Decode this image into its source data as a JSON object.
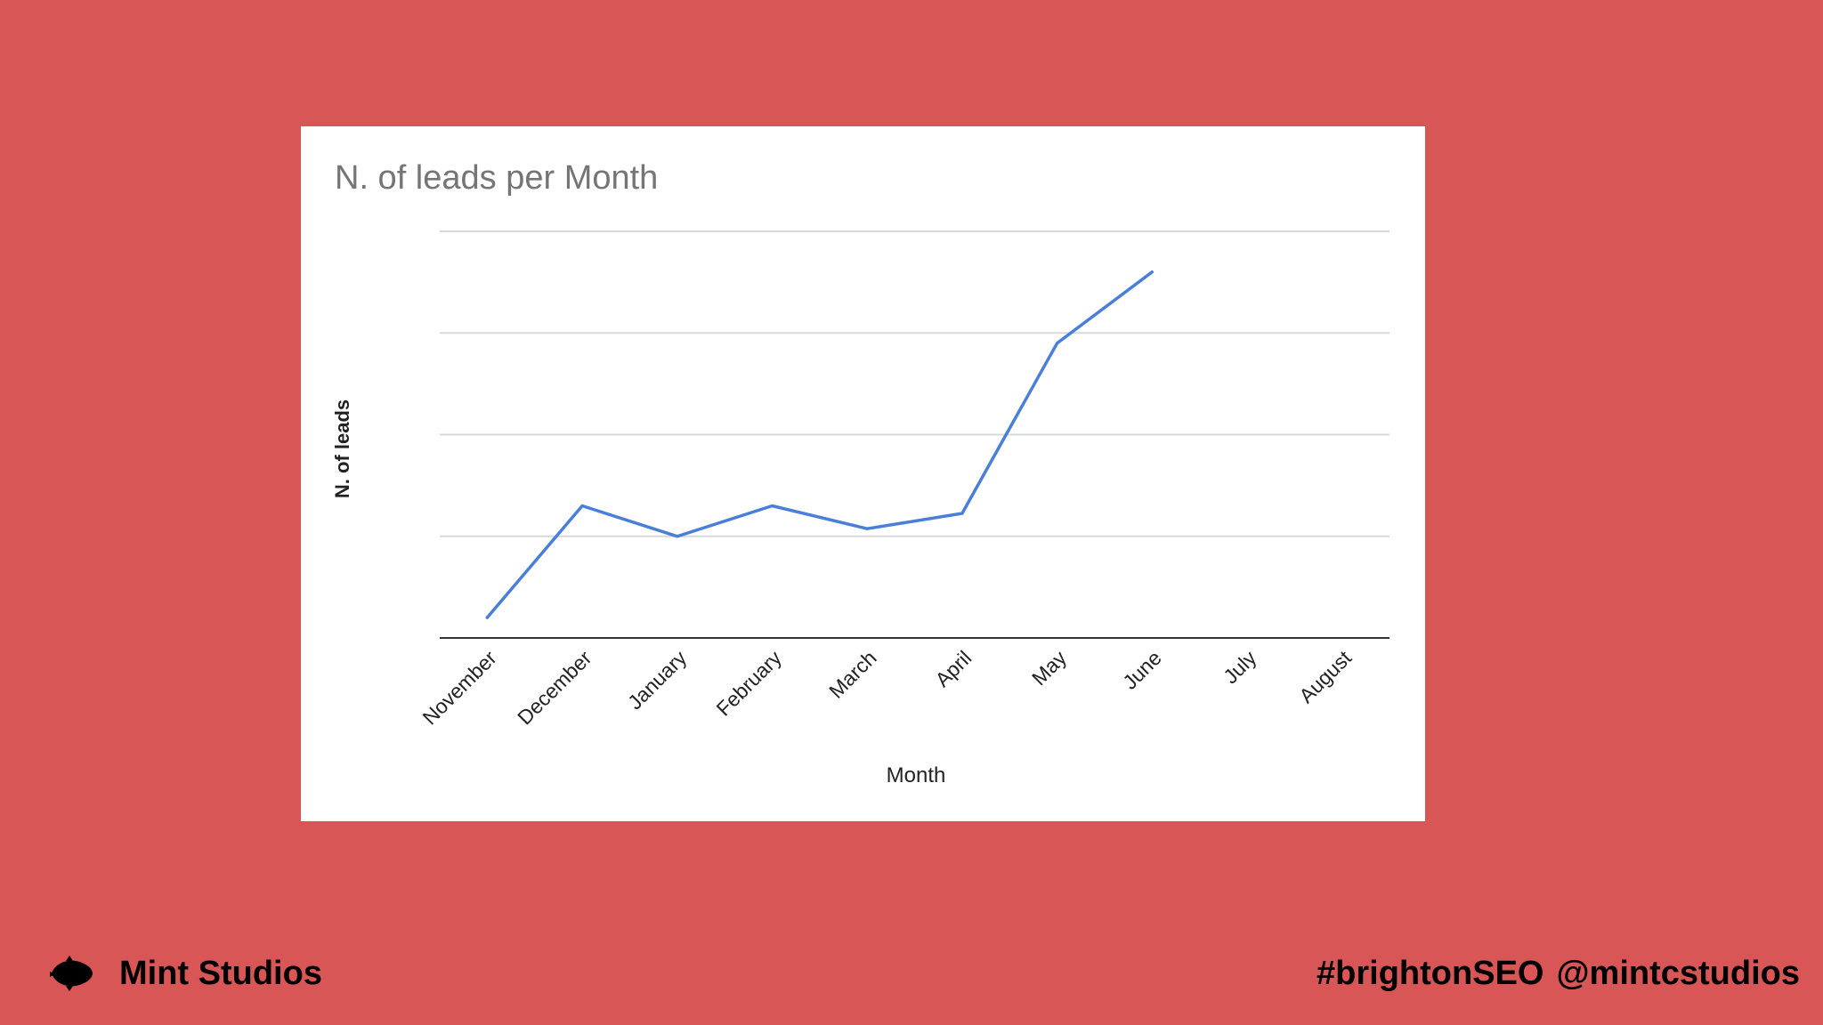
{
  "chart_data": {
    "type": "line",
    "title": "N. of leads per Month",
    "xlabel": "Month",
    "ylabel": "N. of leads",
    "categories": [
      "November",
      "December",
      "January",
      "February",
      "March",
      "April",
      "May",
      "June",
      "July",
      "August"
    ],
    "series": [
      {
        "name": "N. of leads",
        "values": [
          4,
          26,
          20,
          26,
          21.5,
          24.5,
          58,
          72,
          null,
          null
        ],
        "color": "#4a7fd9"
      }
    ],
    "ylim": [
      0,
      80
    ],
    "gridlines": [
      0,
      20,
      40,
      60,
      80
    ],
    "grid": true,
    "y_tick_labels_visible": false,
    "legend": "none"
  },
  "footer": {
    "brand_name": "Mint Studios",
    "hashtag": "#brightonSEO",
    "handle": "@mintcstudios",
    "logo_icon": "mint-leaf-icon"
  },
  "colors": {
    "background": "#d95656",
    "card": "#ffffff",
    "line": "#4a7fd9",
    "gridline": "#d9d9d9",
    "axis": "#333333",
    "title": "#757575",
    "text": "#222222"
  }
}
